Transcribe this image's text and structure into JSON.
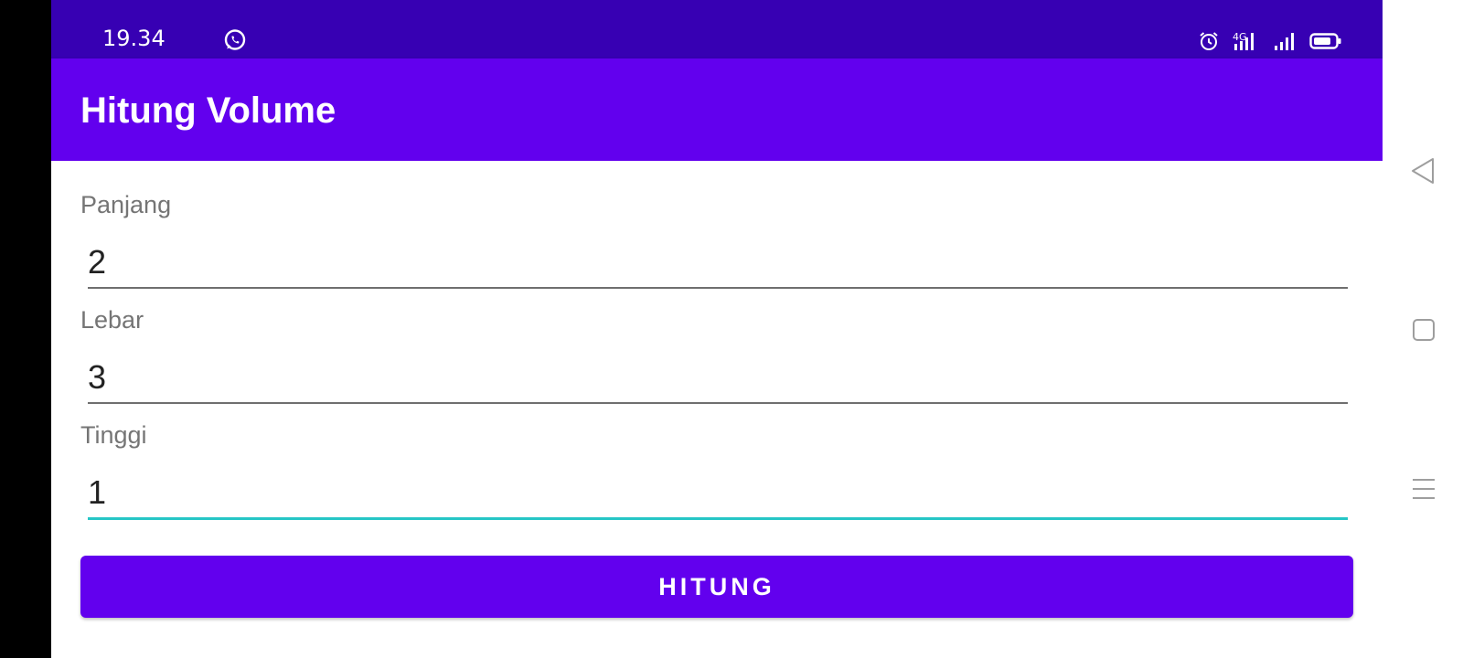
{
  "status_bar": {
    "time": "19.34",
    "icons": [
      "whatsapp-icon",
      "alarm-icon",
      "signal-4g-icon",
      "signal-icon",
      "battery-icon"
    ],
    "network_label": "4G",
    "background": "#3700B3"
  },
  "toolbar": {
    "title": "Hitung Volume",
    "background": "#6200EE"
  },
  "form": {
    "fields": [
      {
        "label": "Panjang",
        "value": "2"
      },
      {
        "label": "Lebar",
        "value": "3"
      },
      {
        "label": "Tinggi",
        "value": "1"
      }
    ],
    "focused_field": "Tinggi",
    "focus_color": "#26C6C6"
  },
  "button": {
    "label": "HITUNG",
    "background": "#6200EE"
  },
  "nav_bar": {
    "buttons": [
      "back-icon",
      "home-icon",
      "recents-icon"
    ]
  }
}
